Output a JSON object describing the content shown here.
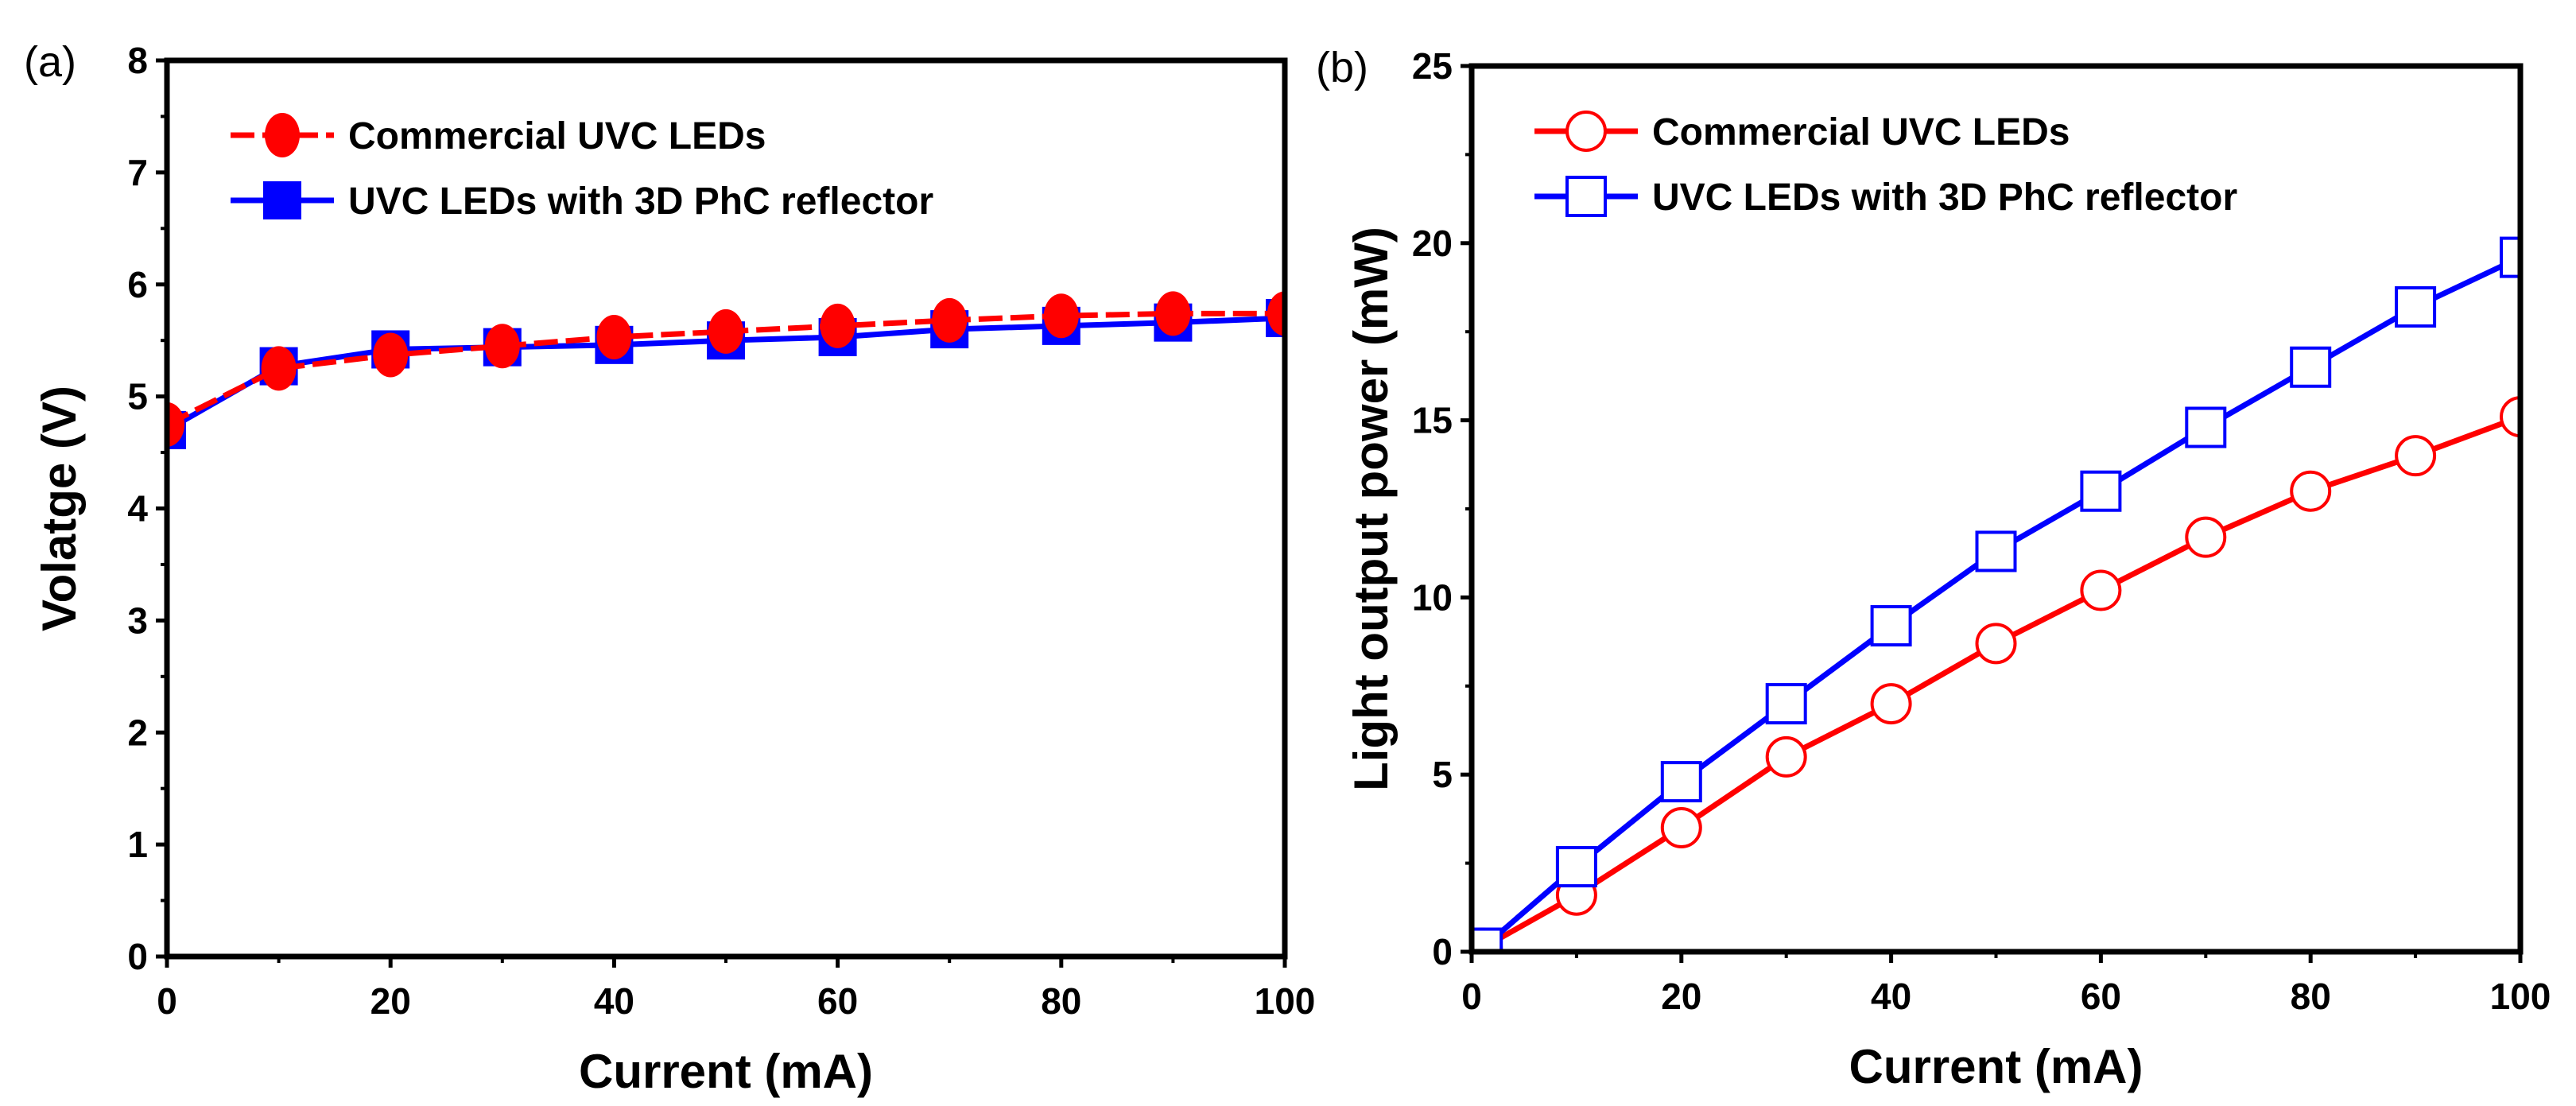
{
  "chart_data": [
    {
      "panel_label": "(a)",
      "type": "line",
      "xlabel": "Current (mA)",
      "ylabel": "Volatge (V)",
      "xlim": [
        0,
        100
      ],
      "ylim": [
        0,
        8
      ],
      "xticks": [
        0,
        20,
        40,
        60,
        80,
        100
      ],
      "yticks": [
        0,
        1,
        2,
        3,
        4,
        5,
        6,
        7,
        8
      ],
      "grid": false,
      "legend_position": "top-left",
      "x": [
        0,
        10,
        20,
        30,
        40,
        50,
        60,
        70,
        80,
        90,
        100
      ],
      "series": [
        {
          "name": "Commercial UVC LEDs",
          "color": "#ff0000",
          "marker": "filled-circle",
          "line": "dashed",
          "values": [
            4.75,
            5.25,
            5.37,
            5.45,
            5.53,
            5.58,
            5.63,
            5.68,
            5.72,
            5.74,
            5.74
          ]
        },
        {
          "name": "UVC LEDs with 3D PhC reflector",
          "color": "#0000ff",
          "marker": "filled-square",
          "line": "solid",
          "values": [
            4.7,
            5.27,
            5.42,
            5.44,
            5.46,
            5.5,
            5.53,
            5.6,
            5.63,
            5.66,
            5.7
          ]
        }
      ]
    },
    {
      "panel_label": "(b)",
      "type": "line",
      "xlabel": "Current (mA)",
      "ylabel": "Light output power (mW)",
      "xlim": [
        0,
        100
      ],
      "ylim": [
        0,
        25
      ],
      "xticks": [
        0,
        20,
        40,
        60,
        80,
        100
      ],
      "yticks": [
        0,
        5,
        10,
        15,
        20,
        25
      ],
      "grid": false,
      "legend_position": "top-left",
      "x": [
        1,
        10,
        20,
        30,
        40,
        50,
        60,
        70,
        80,
        90,
        100
      ],
      "series": [
        {
          "name": "Commercial UVC LEDs",
          "color": "#ff0000",
          "marker": "open-circle",
          "line": "solid",
          "values": [
            0.1,
            1.6,
            3.5,
            5.5,
            7.0,
            8.7,
            10.2,
            11.7,
            13.0,
            14.0,
            15.1
          ]
        },
        {
          "name": "UVC LEDs with 3D PhC reflector",
          "color": "#0000ff",
          "marker": "open-square",
          "line": "solid",
          "values": [
            0.1,
            2.4,
            4.8,
            7.0,
            9.2,
            11.3,
            13.0,
            14.8,
            16.5,
            18.2,
            19.6
          ]
        }
      ]
    }
  ]
}
